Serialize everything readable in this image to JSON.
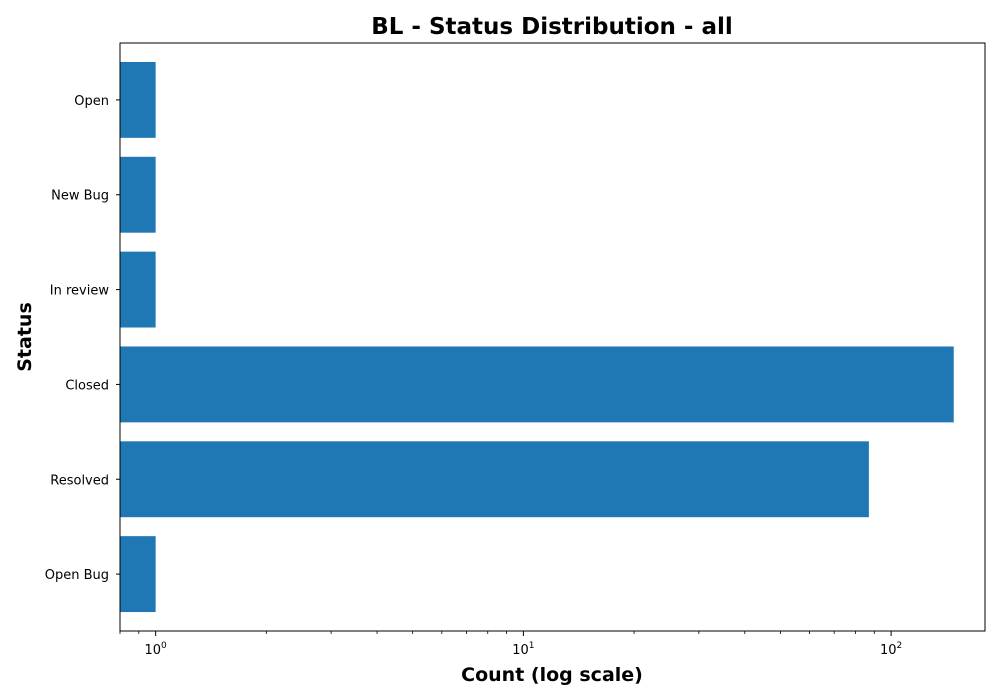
{
  "chart_data": {
    "type": "bar",
    "orientation": "horizontal",
    "title": "BL - Status Distribution - all",
    "xlabel": "Count (log scale)",
    "ylabel": "Status",
    "x_scale": "log",
    "xlim": [
      0.8,
      180
    ],
    "x_ticks": [
      {
        "value": 1,
        "base": "10",
        "exp": "0"
      },
      {
        "value": 10,
        "base": "10",
        "exp": "1"
      },
      {
        "value": 100,
        "base": "10",
        "exp": "2"
      }
    ],
    "categories": [
      "Open Bug",
      "Resolved",
      "Closed",
      "In review",
      "New Bug",
      "Open"
    ],
    "values": [
      1,
      87,
      148,
      1,
      1,
      1
    ],
    "bar_color": "#1f77b4",
    "grid": false,
    "legend": "none"
  }
}
